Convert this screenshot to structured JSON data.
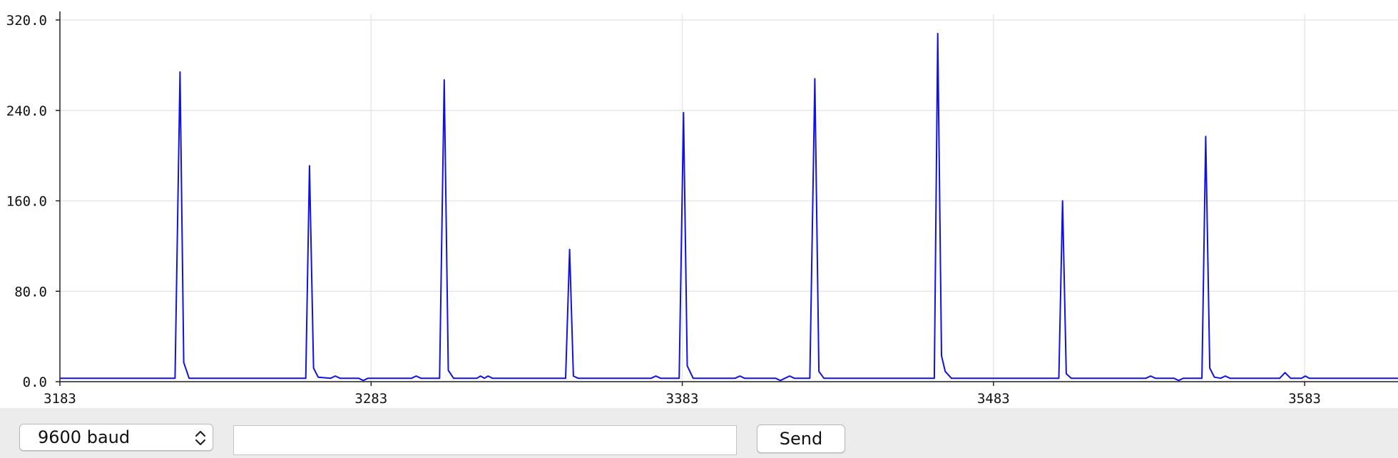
{
  "chart_data": {
    "type": "line",
    "title": "",
    "xlabel": "",
    "ylabel": "",
    "xlim": [
      3183,
      3613
    ],
    "ylim": [
      0,
      320
    ],
    "x_ticks": [
      "3183",
      "3283",
      "3383",
      "3483",
      "3583"
    ],
    "y_ticks": [
      "0.0",
      "80.0",
      "160.0",
      "240.0",
      "320.0"
    ],
    "grid": true,
    "line_color": "#1010e8",
    "baseline": 3,
    "series": [
      {
        "points": [
          [
            3183,
            3
          ],
          [
            3220,
            3
          ],
          [
            3221.6,
            274
          ],
          [
            3222.8,
            17
          ],
          [
            3224.5,
            3
          ],
          [
            3262,
            3
          ],
          [
            3263.2,
            191
          ],
          [
            3264.5,
            12
          ],
          [
            3266,
            4
          ],
          [
            3270,
            3
          ],
          [
            3271.5,
            5
          ],
          [
            3273,
            3
          ],
          [
            3279,
            3
          ],
          [
            3280.5,
            1
          ],
          [
            3282,
            3
          ],
          [
            3296,
            3
          ],
          [
            3297.5,
            5
          ],
          [
            3299,
            3
          ],
          [
            3305,
            3
          ],
          [
            3306.5,
            267
          ],
          [
            3307.8,
            10
          ],
          [
            3309.5,
            3
          ],
          [
            3317,
            3
          ],
          [
            3318.2,
            5
          ],
          [
            3319.4,
            3
          ],
          [
            3320.6,
            5
          ],
          [
            3322,
            3
          ],
          [
            3345.5,
            3
          ],
          [
            3346.8,
            117
          ],
          [
            3348,
            5
          ],
          [
            3349.5,
            3
          ],
          [
            3373,
            3
          ],
          [
            3374.5,
            5
          ],
          [
            3376,
            3
          ],
          [
            3382,
            3
          ],
          [
            3383.4,
            238
          ],
          [
            3384.6,
            14
          ],
          [
            3386.5,
            3
          ],
          [
            3400,
            3
          ],
          [
            3401.5,
            5
          ],
          [
            3403,
            3
          ],
          [
            3413,
            3
          ],
          [
            3414.5,
            1
          ],
          [
            3416,
            3
          ],
          [
            3417.5,
            5
          ],
          [
            3419,
            3
          ],
          [
            3424,
            3
          ],
          [
            3425.6,
            268
          ],
          [
            3426.9,
            9
          ],
          [
            3428.5,
            3
          ],
          [
            3464,
            3
          ],
          [
            3465.1,
            308
          ],
          [
            3466.3,
            23
          ],
          [
            3467.5,
            9
          ],
          [
            3469.5,
            3
          ],
          [
            3504,
            3
          ],
          [
            3505.2,
            160
          ],
          [
            3506.4,
            7
          ],
          [
            3508,
            3
          ],
          [
            3532,
            3
          ],
          [
            3533.5,
            5
          ],
          [
            3535,
            3
          ],
          [
            3541,
            3
          ],
          [
            3542.5,
            1
          ],
          [
            3544,
            3
          ],
          [
            3550,
            3
          ],
          [
            3551.2,
            217
          ],
          [
            3552.5,
            12
          ],
          [
            3554,
            4
          ],
          [
            3556,
            3
          ],
          [
            3557.5,
            5
          ],
          [
            3559,
            3
          ],
          [
            3575,
            3
          ],
          [
            3576.7,
            8
          ],
          [
            3578.5,
            3
          ],
          [
            3582,
            3
          ],
          [
            3583.2,
            5
          ],
          [
            3584.5,
            3
          ],
          [
            3613,
            3
          ]
        ]
      }
    ]
  },
  "controls": {
    "baud_label": "9600 baud",
    "input_value": "",
    "input_placeholder": "",
    "send_label": "Send",
    "chevron_icon": "up-down-chevron-icon"
  }
}
